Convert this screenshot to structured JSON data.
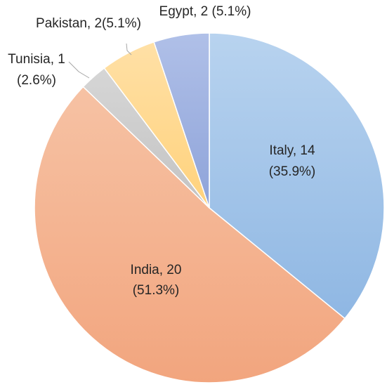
{
  "chart_data": {
    "type": "pie",
    "title": "",
    "start_angle_deg": 0,
    "direction": "clockwise",
    "slices": [
      {
        "label": "Italy",
        "value": 14,
        "percent": "35.9%",
        "color": "#9DC3E6",
        "label_line1": "Italy, 14",
        "label_line2": "(35.9%)"
      },
      {
        "label": "India",
        "value": 20,
        "percent": "51.3%",
        "color": "#F4B183",
        "label_line1": "India, 20",
        "label_line2": "(51.3%)"
      },
      {
        "label": "Tunisia",
        "value": 1,
        "percent": "2.6%",
        "color": "#C9C9C9",
        "label_line1": "Tunisia, 1",
        "label_line2": "(2.6%)"
      },
      {
        "label": "Pakistan",
        "value": 2,
        "percent": "5.1%",
        "color": "#FFD88C",
        "label_line1": "Pakistan, 2(5.1%)",
        "label_line2": ""
      },
      {
        "label": "Egypt",
        "value": 2,
        "percent": "5.1%",
        "color": "#9FB1E0",
        "label_line1": "Egypt, 2 (5.1%)",
        "label_line2": ""
      }
    ]
  }
}
